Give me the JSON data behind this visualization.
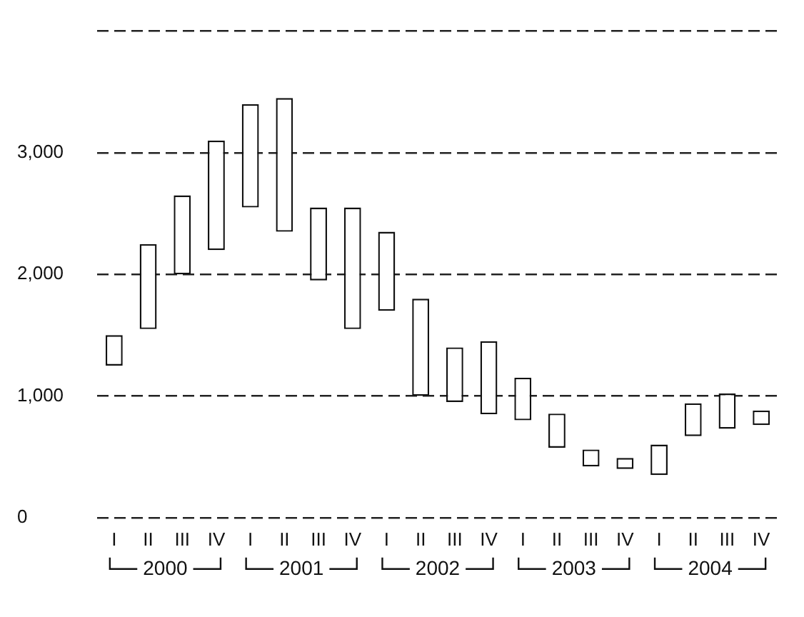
{
  "chart_data": {
    "type": "bar",
    "categories": [
      "I",
      "II",
      "III",
      "IV",
      "I",
      "II",
      "III",
      "IV",
      "I",
      "II",
      "III",
      "IV",
      "I",
      "II",
      "III",
      "IV",
      "I",
      "II",
      "III",
      "IV"
    ],
    "base": [
      1250,
      1550,
      2000,
      2200,
      2550,
      2350,
      1950,
      1550,
      1700,
      1000,
      950,
      850,
      800,
      575,
      420,
      400,
      350,
      670,
      730,
      760
    ],
    "values": [
      250,
      700,
      650,
      900,
      850,
      1100,
      600,
      1000,
      650,
      800,
      450,
      600,
      350,
      280,
      140,
      90,
      250,
      270,
      290,
      120
    ],
    "color": "#ffffff",
    "ylim": [
      0,
      4000
    ],
    "yticks": [
      0,
      {
        "value": 1000,
        "label": "1,000"
      },
      {
        "value": 2000,
        "label": "2,000"
      },
      {
        "value": 3000,
        "label": "3,000"
      },
      {
        "value": 4000,
        "label": null
      }
    ],
    "grid": "y",
    "line_style": "dashed",
    "annotations": [
      "2000",
      "2001",
      "2002",
      "2003",
      "2004"
    ]
  }
}
